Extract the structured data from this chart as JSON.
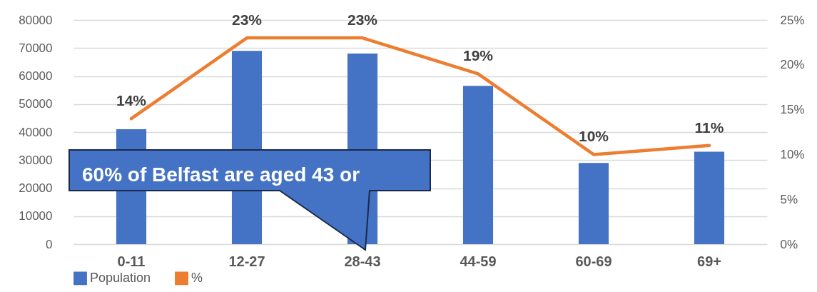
{
  "chart_data": {
    "type": "bar",
    "categories": [
      "0-11",
      "12-27",
      "28-43",
      "44-59",
      "60-69",
      "69+"
    ],
    "series": [
      {
        "name": "Population",
        "color": "#4472c4",
        "values": [
          41000,
          69000,
          68000,
          56500,
          29000,
          33000
        ]
      },
      {
        "name": "%",
        "type": "line",
        "axis": "y2",
        "color": "#ed7d31",
        "values": [
          14,
          23,
          23,
          19,
          10,
          11
        ],
        "value_labels": [
          "14%",
          "23%",
          "23%",
          "19%",
          "10%",
          "11%"
        ]
      }
    ],
    "ylim": [
      0,
      80000
    ],
    "yticks": [
      0,
      10000,
      20000,
      30000,
      40000,
      50000,
      60000,
      70000,
      80000
    ],
    "y2lim": [
      0,
      25
    ],
    "y2ticks": [
      {
        "value": 0,
        "label": "0%"
      },
      {
        "value": 5,
        "label": "5%"
      },
      {
        "value": 10,
        "label": "10%"
      },
      {
        "value": 15,
        "label": "15%"
      },
      {
        "value": 20,
        "label": "20%"
      },
      {
        "value": 25,
        "label": "25%"
      }
    ],
    "grid": "y",
    "legend": "bottom",
    "annotations": [
      "60% of Belfast are aged 43 or"
    ]
  }
}
